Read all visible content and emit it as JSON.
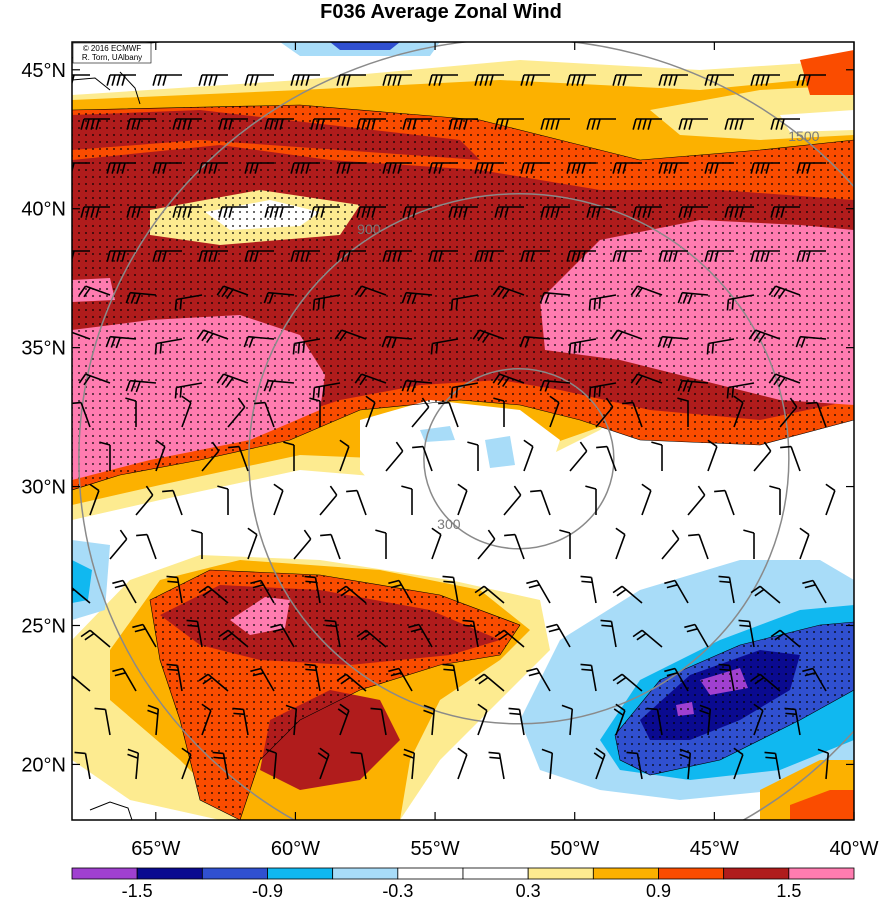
{
  "title": "F036 Average Zonal Wind",
  "credit": {
    "line1": "© 2016 ECMWF",
    "line2": "R. Torn, UAlbany"
  },
  "chart_data": {
    "type": "heatmap",
    "title": "F036 Average Zonal Wind",
    "x_ticks": [
      "65°W",
      "60°W",
      "55°W",
      "50°W",
      "45°W",
      "40°W"
    ],
    "x_tick_values": [
      -65,
      -60,
      -55,
      -50,
      -45,
      -40
    ],
    "y_ticks": [
      "45°N",
      "40°N",
      "35°N",
      "30°N",
      "25°N",
      "20°N"
    ],
    "y_tick_values": [
      45,
      40,
      35,
      30,
      25,
      20
    ],
    "xlim": [
      -68,
      -40
    ],
    "ylim": [
      18,
      46
    ],
    "colorbar": {
      "labels": [
        "-1.5",
        "-0.9",
        "-0.3",
        "0.3",
        "0.9",
        "1.5"
      ],
      "label_values": [
        -1.5,
        -0.9,
        -0.3,
        0.3,
        0.9,
        1.5
      ],
      "colors": [
        "#a040d0",
        "#0a0a90",
        "#3050d0",
        "#10b8f0",
        "#a8dcf8",
        "#ffffff",
        "#ffffff",
        "#fdeb90",
        "#fcb100",
        "#fa4c00",
        "#b01c1c",
        "#ff7cb0"
      ]
    },
    "range_rings": {
      "center": [
        -52,
        31
      ],
      "rings": [
        {
          "value": 300,
          "label": "300"
        },
        {
          "value": 900,
          "label": "900"
        },
        {
          "value": 1500,
          "label": "1500"
        }
      ]
    },
    "field_regions": [
      {
        "level": 1.1,
        "color": "#fa4c00",
        "desc": "northern jet band"
      },
      {
        "level": 1.3,
        "color": "#b01c1c",
        "desc": "northern jet core"
      },
      {
        "level": 1.6,
        "color": "#ff7cb0",
        "desc": "jet max east"
      },
      {
        "level": 1.6,
        "color": "#ff7cb0",
        "desc": "jet max west"
      },
      {
        "level": 1.1,
        "color": "#fa4c00",
        "desc": "southern band"
      },
      {
        "level": 1.3,
        "color": "#b01c1c",
        "desc": "southern core"
      },
      {
        "level": -0.6,
        "color": "#a8dcf8",
        "desc": "southeast negative"
      },
      {
        "level": -1.2,
        "color": "#0a0a90",
        "desc": "southeast minimum"
      }
    ]
  }
}
